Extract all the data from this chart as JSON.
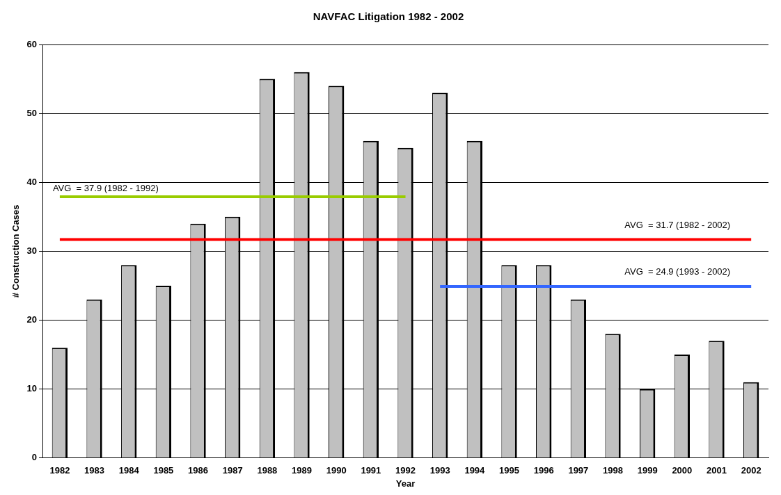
{
  "chart_data": {
    "type": "bar",
    "title": "NAVFAC Litigation 1982 - 2002",
    "xlabel": "Year",
    "ylabel": "# Construction Cases",
    "categories": [
      "1982",
      "1983",
      "1984",
      "1985",
      "1986",
      "1987",
      "1988",
      "1989",
      "1990",
      "1991",
      "1992",
      "1993",
      "1994",
      "1995",
      "1996",
      "1997",
      "1998",
      "1999",
      "2000",
      "2001",
      "2002"
    ],
    "series": [
      {
        "color": "#c0c0c0",
        "values": [
          16,
          23,
          28,
          25,
          34,
          35,
          55,
          56,
          54,
          46,
          45,
          53,
          46,
          28,
          28,
          23,
          18,
          10,
          15,
          17,
          11
        ]
      },
      {
        "type": "line",
        "color": "#99cc00",
        "values": [
          37.9,
          37.9,
          37.9,
          37.9,
          37.9,
          37.9,
          37.9,
          37.9,
          37.9,
          37.9,
          37.9,
          null,
          null,
          null,
          null,
          null,
          null,
          null,
          null,
          null,
          null
        ]
      },
      {
        "type": "line",
        "color": "#ff0000",
        "values": [
          31.7,
          31.7,
          31.7,
          31.7,
          31.7,
          31.7,
          31.7,
          31.7,
          31.7,
          31.7,
          31.7,
          31.7,
          31.7,
          31.7,
          31.7,
          31.7,
          31.7,
          31.7,
          31.7,
          31.7,
          31.7
        ]
      },
      {
        "type": "line",
        "color": "#3366ff",
        "values": [
          null,
          null,
          null,
          null,
          null,
          null,
          null,
          null,
          null,
          null,
          null,
          24.9,
          24.9,
          24.9,
          24.9,
          24.9,
          24.9,
          24.9,
          24.9,
          24.9,
          24.9
        ]
      }
    ],
    "annotations": [
      "AVG  = 37.9 (1982 - 1992)",
      "AVG  = 31.7 (1982 - 2002)",
      "AVG  = 24.9 (1993 - 2002)"
    ],
    "ylim": [
      0,
      60
    ],
    "yticks": [
      0,
      10,
      20,
      30,
      40,
      50,
      60
    ],
    "grid": "y",
    "legend": false,
    "marker": "none",
    "line_style": "solid"
  }
}
